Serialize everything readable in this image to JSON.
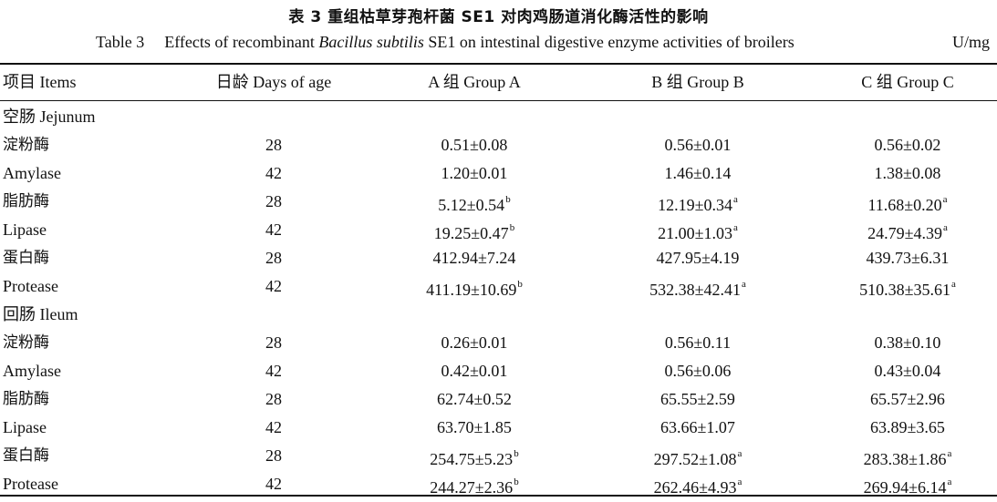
{
  "caption": {
    "cn_title": "表 3   重组枯草芽孢杆菌 SE1 对肉鸡肠道消化酶活性的影响",
    "en_table_number": "Table 3",
    "en_title_before": "Effects of recombinant ",
    "en_title_italic": "Bacillus subtilis",
    "en_title_after": " SE1 on intestinal digestive enzyme activities of broilers",
    "unit": "U/mg"
  },
  "header": {
    "items": "项目 Items",
    "days": "日龄 Days of age",
    "group_a": "A 组 Group A",
    "group_b": "B 组 Group B",
    "group_c": "C 组 Group C"
  },
  "sections": [
    {
      "label": "空肠 Jejunum",
      "rows": [
        {
          "label": "淀粉酶",
          "day": "28",
          "a": "0.51±0.08",
          "a_sig": "",
          "b": "0.56±0.01",
          "b_sig": "",
          "c": "0.56±0.02",
          "c_sig": ""
        },
        {
          "label": "Amylase",
          "day": "42",
          "a": "1.20±0.01",
          "a_sig": "",
          "b": "1.46±0.14",
          "b_sig": "",
          "c": "1.38±0.08",
          "c_sig": ""
        },
        {
          "label": "脂肪酶",
          "day": "28",
          "a": "5.12±0.54",
          "a_sig": "b",
          "b": "12.19±0.34",
          "b_sig": "a",
          "c": "11.68±0.20",
          "c_sig": "a"
        },
        {
          "label": "Lipase",
          "day": "42",
          "a": "19.25±0.47",
          "a_sig": "b",
          "b": "21.00±1.03",
          "b_sig": "a",
          "c": "24.79±4.39",
          "c_sig": "a"
        },
        {
          "label": "蛋白酶",
          "day": "28",
          "a": "412.94±7.24",
          "a_sig": "",
          "b": "427.95±4.19",
          "b_sig": "",
          "c": "439.73±6.31",
          "c_sig": ""
        },
        {
          "label": "Protease",
          "day": "42",
          "a": "411.19±10.69",
          "a_sig": "b",
          "b": "532.38±42.41",
          "b_sig": "a",
          "c": "510.38±35.61",
          "c_sig": "a"
        }
      ]
    },
    {
      "label": "回肠 Ileum",
      "rows": [
        {
          "label": "淀粉酶",
          "day": "28",
          "a": "0.26±0.01",
          "a_sig": "",
          "b": "0.56±0.11",
          "b_sig": "",
          "c": "0.38±0.10",
          "c_sig": ""
        },
        {
          "label": "Amylase",
          "day": "42",
          "a": "0.42±0.01",
          "a_sig": "",
          "b": "0.56±0.06",
          "b_sig": "",
          "c": "0.43±0.04",
          "c_sig": ""
        },
        {
          "label": "脂肪酶",
          "day": "28",
          "a": "62.74±0.52",
          "a_sig": "",
          "b": "65.55±2.59",
          "b_sig": "",
          "c": "65.57±2.96",
          "c_sig": ""
        },
        {
          "label": "Lipase",
          "day": "42",
          "a": "63.70±1.85",
          "a_sig": "",
          "b": "63.66±1.07",
          "b_sig": "",
          "c": "63.89±3.65",
          "c_sig": ""
        },
        {
          "label": "蛋白酶",
          "day": "28",
          "a": "254.75±5.23",
          "a_sig": "b",
          "b": "297.52±1.08",
          "b_sig": "a",
          "c": "283.38±1.86",
          "c_sig": "a"
        },
        {
          "label": "Protease",
          "day": "42",
          "a": "244.27±2.36",
          "a_sig": "b",
          "b": "262.46±4.93",
          "b_sig": "a",
          "c": "269.94±6.14",
          "c_sig": "a"
        }
      ]
    }
  ]
}
